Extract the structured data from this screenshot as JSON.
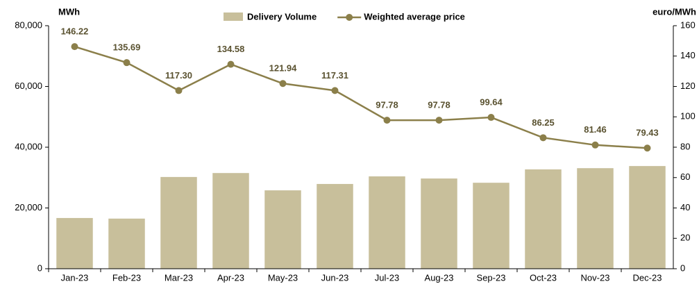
{
  "chart_data": {
    "type": "bar_line",
    "y_label": "MWh",
    "y2_label": "euro/MWh",
    "categories": [
      "Jan-23",
      "Feb-23",
      "Mar-23",
      "Apr-23",
      "May-23",
      "Jun-23",
      "Jul-23",
      "Aug-23",
      "Sep-23",
      "Oct-23",
      "Nov-23",
      "Dec-23"
    ],
    "series": [
      {
        "name": "Delivery Volume",
        "type": "bar",
        "color": "#c8bf9b",
        "axis": "y",
        "values": [
          16700,
          16500,
          30200,
          31500,
          25800,
          27900,
          30400,
          29700,
          28300,
          32700,
          33100,
          33800
        ]
      },
      {
        "name": "Weighted average price",
        "type": "line",
        "color": "#8b7f4a",
        "axis": "y2",
        "values": [
          146.22,
          135.69,
          117.3,
          134.58,
          121.94,
          117.31,
          97.78,
          97.78,
          99.64,
          86.25,
          81.46,
          79.43
        ],
        "value_labels": [
          "146.22",
          "135.69",
          "117.30",
          "134.58",
          "121.94",
          "117.31",
          "97.78",
          "97.78",
          "99.64",
          "86.25",
          "81.46",
          "79.43"
        ]
      }
    ],
    "ylim": [
      0,
      80000
    ],
    "yticks": [
      0,
      {
        "value": 20000,
        "label": "20,000"
      },
      {
        "value": 40000,
        "label": "40,000"
      },
      {
        "value": 60000,
        "label": "60,000"
      },
      {
        "value": 80000,
        "label": "80,000"
      }
    ],
    "y2lim": [
      0,
      160
    ],
    "y2ticks": [
      0,
      20,
      40,
      60,
      80,
      100,
      120,
      140,
      160
    ],
    "grid": false,
    "legend": "top"
  }
}
